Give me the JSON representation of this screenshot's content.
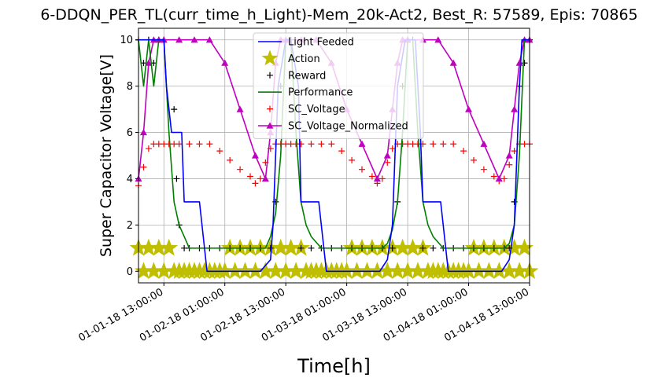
{
  "chart_data": {
    "type": "line",
    "title": "6-DDQN_PER_TL(curr_time_h_Light)-Mem_20k-Act2, Best_R: 57589, Epis: 70865",
    "xlabel": "Time[h]",
    "ylabel": "Super Capacitor Voltage[V]",
    "xlim": [
      "01-01-18 08:00:00",
      "01-04-18 13:00:00"
    ],
    "ylim": [
      -0.5,
      10.5
    ],
    "grid": true,
    "legend_position": "upper center",
    "x_ticks": [
      "01-01-18 13:00:00",
      "01-02-18 01:00:00",
      "01-02-18 13:00:00",
      "01-03-18 01:00:00",
      "01-03-18 13:00:00",
      "01-04-18 01:00:00",
      "01-04-18 13:00:00"
    ],
    "y_ticks": [
      0,
      2,
      4,
      6,
      8,
      10
    ],
    "series": [
      {
        "name": "Light Feeded",
        "color": "#0000ff",
        "marker": "none",
        "x": [
          "01-01-18 08:00",
          "01-01-18 13:00",
          "01-01-18 13:30",
          "01-01-18 14:30",
          "01-01-18 16:30",
          "01-01-18 17:00",
          "01-01-18 20:00",
          "01-01-18 21:30",
          "01-02-18 08:00",
          "01-02-18 10:00",
          "01-02-18 10:30",
          "01-02-18 11:30",
          "01-02-18 13:00",
          "01-02-18 14:00",
          "01-02-18 15:30",
          "01-02-18 16:00",
          "01-02-18 19:30",
          "01-02-18 21:00",
          "01-03-18 07:30",
          "01-03-18 09:00",
          "01-03-18 10:00",
          "01-03-18 11:00",
          "01-03-18 12:30",
          "01-03-18 14:30",
          "01-03-18 15:30",
          "01-03-18 16:00",
          "01-03-18 19:30",
          "01-03-18 21:00",
          "01-04-18 07:30",
          "01-04-18 09:00",
          "01-04-18 10:00",
          "01-04-18 11:00",
          "01-04-18 11:30",
          "01-04-18 13:00"
        ],
        "y": [
          10,
          10,
          8,
          6,
          6,
          3,
          3,
          0,
          0,
          0.5,
          2,
          8,
          10,
          10,
          8,
          3,
          3,
          0,
          0,
          0.5,
          2,
          8,
          10,
          10,
          6,
          3,
          3,
          0,
          0,
          0.5,
          2,
          8,
          10,
          10
        ]
      },
      {
        "name": "Action",
        "color": "#bfbf00",
        "marker": "star",
        "x": [
          "01-01-18 08:00",
          "01-01-18 09:00",
          "01-01-18 10:00",
          "01-01-18 11:00",
          "01-01-18 12:00",
          "01-01-18 13:00",
          "01-01-18 14:00",
          "01-01-18 15:00",
          "01-01-18 16:00",
          "01-01-18 17:00",
          "01-01-18 18:00",
          "01-01-18 19:00",
          "01-01-18 20:00",
          "01-01-18 21:00",
          "01-01-18 22:00",
          "01-01-18 23:00",
          "01-02-18 00:00",
          "01-02-18 01:00",
          "01-02-18 02:00",
          "01-02-18 03:00",
          "01-02-18 04:00",
          "01-02-18 05:00",
          "01-02-18 06:00",
          "01-02-18 07:00",
          "01-02-18 08:00",
          "01-02-18 09:00",
          "01-02-18 10:00",
          "01-02-18 11:00",
          "01-02-18 12:00",
          "01-02-18 13:00",
          "01-02-18 14:00",
          "01-02-18 15:00",
          "01-02-18 16:00",
          "01-02-18 17:00",
          "01-02-18 18:00",
          "01-02-18 19:00",
          "01-02-18 20:00",
          "01-02-18 21:00",
          "01-02-18 22:00",
          "01-02-18 23:00",
          "01-03-18 00:00",
          "01-03-18 01:00",
          "01-03-18 02:00",
          "01-03-18 03:00",
          "01-03-18 04:00",
          "01-03-18 05:00",
          "01-03-18 06:00",
          "01-03-18 07:00",
          "01-03-18 08:00",
          "01-03-18 09:00",
          "01-03-18 10:00",
          "01-03-18 11:00",
          "01-03-18 12:00",
          "01-03-18 13:00",
          "01-03-18 14:00",
          "01-03-18 15:00",
          "01-03-18 16:00",
          "01-03-18 17:00",
          "01-03-18 18:00",
          "01-03-18 19:00",
          "01-03-18 20:00",
          "01-03-18 21:00",
          "01-03-18 22:00",
          "01-03-18 23:00",
          "01-04-18 00:00",
          "01-04-18 01:00",
          "01-04-18 02:00",
          "01-04-18 03:00",
          "01-04-18 04:00",
          "01-04-18 05:00",
          "01-04-18 06:00",
          "01-04-18 07:00",
          "01-04-18 08:00",
          "01-04-18 09:00",
          "01-04-18 10:00",
          "01-04-18 11:00",
          "01-04-18 12:00",
          "01-04-18 13:00"
        ],
        "y": [
          1,
          0,
          1,
          0,
          1,
          0,
          1,
          0,
          0,
          0,
          0,
          0,
          0,
          0,
          0,
          0,
          0,
          0,
          1,
          0,
          1,
          0,
          1,
          0,
          1,
          0,
          1,
          0,
          1,
          0,
          1,
          0,
          1,
          0,
          0,
          0,
          0,
          0,
          0,
          0,
          0,
          0,
          1,
          0,
          1,
          0,
          1,
          0,
          1,
          0,
          1,
          0,
          1,
          0,
          1,
          0,
          1,
          0,
          0,
          0,
          0,
          0,
          0,
          0,
          0,
          0,
          1,
          0,
          1,
          0,
          1,
          0,
          1,
          0,
          1,
          0,
          1,
          0
        ]
      },
      {
        "name": "Reward",
        "color": "#000000",
        "marker": "plus",
        "x": [
          "01-01-18 08:00",
          "01-01-18 09:00",
          "01-01-18 10:00",
          "01-01-18 11:00",
          "01-01-18 12:00",
          "01-01-18 13:00",
          "01-01-18 15:00",
          "01-01-18 15:30",
          "01-01-18 16:00",
          "01-01-18 17:00",
          "01-01-18 18:00",
          "01-01-18 20:00",
          "01-01-18 22:00",
          "01-02-18 00:00",
          "01-02-18 02:00",
          "01-02-18 04:00",
          "01-02-18 06:00",
          "01-02-18 08:00",
          "01-02-18 10:00",
          "01-02-18 11:00",
          "01-02-18 12:00",
          "01-02-18 13:00",
          "01-02-18 14:00",
          "01-02-18 16:00",
          "01-02-18 18:00",
          "01-02-18 20:00",
          "01-02-18 22:00",
          "01-03-18 00:00",
          "01-03-18 02:00",
          "01-03-18 04:00",
          "01-03-18 06:00",
          "01-03-18 08:00",
          "01-03-18 10:00",
          "01-03-18 11:00",
          "01-03-18 12:00",
          "01-03-18 13:00",
          "01-03-18 14:00",
          "01-03-18 16:00",
          "01-03-18 18:00",
          "01-03-18 20:00",
          "01-03-18 22:00",
          "01-04-18 00:00",
          "01-04-18 02:00",
          "01-04-18 04:00",
          "01-04-18 06:00",
          "01-04-18 08:00",
          "01-04-18 09:00",
          "01-04-18 10:00",
          "01-04-18 11:00",
          "01-04-18 12:00",
          "01-04-18 13:00"
        ],
        "y": [
          10,
          9,
          10,
          9,
          10,
          10,
          7,
          4,
          2,
          1,
          1,
          1,
          1,
          1,
          1,
          1,
          1,
          1,
          1,
          3,
          8,
          10,
          10,
          1,
          1,
          1,
          1,
          1,
          1,
          1,
          1,
          1,
          1,
          3,
          8,
          10,
          10,
          1,
          1,
          1,
          1,
          1,
          1,
          1,
          1,
          1,
          1,
          3,
          8,
          9,
          10
        ]
      },
      {
        "name": "Performance",
        "color": "#008000",
        "marker": "none",
        "x": [
          "01-01-18 08:00",
          "01-01-18 09:00",
          "01-01-18 10:00",
          "01-01-18 11:00",
          "01-01-18 12:00",
          "01-01-18 13:00",
          "01-01-18 14:00",
          "01-01-18 15:00",
          "01-01-18 16:00",
          "01-01-18 17:00",
          "01-01-18 18:00",
          "01-01-18 20:00",
          "01-02-18 00:00",
          "01-02-18 06:00",
          "01-02-18 08:00",
          "01-02-18 09:00",
          "01-02-18 10:00",
          "01-02-18 11:00",
          "01-02-18 12:00",
          "01-02-18 13:00",
          "01-02-18 14:00",
          "01-02-18 15:00",
          "01-02-18 16:00",
          "01-02-18 17:00",
          "01-02-18 18:00",
          "01-02-18 20:00",
          "01-03-18 00:00",
          "01-03-18 06:00",
          "01-03-18 08:00",
          "01-03-18 09:00",
          "01-03-18 10:00",
          "01-03-18 11:00",
          "01-03-18 12:00",
          "01-03-18 13:00",
          "01-03-18 14:00",
          "01-03-18 15:00",
          "01-03-18 16:00",
          "01-03-18 17:00",
          "01-03-18 18:00",
          "01-03-18 20:00",
          "01-04-18 00:00",
          "01-04-18 06:00",
          "01-04-18 08:00",
          "01-04-18 09:00",
          "01-04-18 10:00",
          "01-04-18 11:00",
          "01-04-18 12:00",
          "01-04-18 13:00"
        ],
        "y": [
          10,
          8,
          10,
          8,
          10,
          10,
          6,
          3,
          2,
          1.5,
          1,
          1,
          1,
          1,
          1,
          1,
          1.5,
          2.5,
          5,
          10,
          10,
          6,
          3,
          2,
          1.5,
          1,
          1,
          1,
          1,
          1.2,
          1.8,
          3,
          6,
          10,
          10,
          6,
          3,
          2,
          1.5,
          1,
          1,
          1,
          1,
          1.2,
          2,
          5,
          10,
          10
        ]
      },
      {
        "name": "SC_Voltage",
        "color": "#ff0000",
        "marker": "plus",
        "x": [
          "01-01-18 08:00",
          "01-01-18 09:00",
          "01-01-18 10:00",
          "01-01-18 11:00",
          "01-01-18 12:00",
          "01-01-18 13:00",
          "01-01-18 14:00",
          "01-01-18 15:00",
          "01-01-18 16:00",
          "01-01-18 18:00",
          "01-01-18 20:00",
          "01-01-18 22:00",
          "01-02-18 00:00",
          "01-02-18 02:00",
          "01-02-18 04:00",
          "01-02-18 06:00",
          "01-02-18 07:00",
          "01-02-18 08:00",
          "01-02-18 09:00",
          "01-02-18 10:00",
          "01-02-18 11:00",
          "01-02-18 12:00",
          "01-02-18 13:00",
          "01-02-18 14:00",
          "01-02-18 15:00",
          "01-02-18 16:00",
          "01-02-18 18:00",
          "01-02-18 20:00",
          "01-02-18 22:00",
          "01-03-18 00:00",
          "01-03-18 02:00",
          "01-03-18 04:00",
          "01-03-18 06:00",
          "01-03-18 07:00",
          "01-03-18 08:00",
          "01-03-18 09:00",
          "01-03-18 10:00",
          "01-03-18 11:00",
          "01-03-18 12:00",
          "01-03-18 13:00",
          "01-03-18 14:00",
          "01-03-18 15:00",
          "01-03-18 16:00",
          "01-03-18 18:00",
          "01-03-18 20:00",
          "01-03-18 22:00",
          "01-04-18 00:00",
          "01-04-18 02:00",
          "01-04-18 04:00",
          "01-04-18 06:00",
          "01-04-18 07:00",
          "01-04-18 08:00",
          "01-04-18 09:00",
          "01-04-18 10:00",
          "01-04-18 11:00",
          "01-04-18 12:00",
          "01-04-18 13:00"
        ],
        "y": [
          3.7,
          4.5,
          5.3,
          5.5,
          5.5,
          5.5,
          5.5,
          5.5,
          5.5,
          5.5,
          5.5,
          5.5,
          5.2,
          4.8,
          4.4,
          4.1,
          3.8,
          4.0,
          4.7,
          5.3,
          5.5,
          5.5,
          5.5,
          5.5,
          5.5,
          5.5,
          5.5,
          5.5,
          5.5,
          5.2,
          4.8,
          4.4,
          4.1,
          3.8,
          4.0,
          4.7,
          5.3,
          5.5,
          5.5,
          5.5,
          5.5,
          5.5,
          5.5,
          5.5,
          5.5,
          5.5,
          5.2,
          4.8,
          4.4,
          4.1,
          3.9,
          4.0,
          4.6,
          5.2,
          5.5,
          5.5,
          5.5
        ]
      },
      {
        "name": "SC_Voltage_Normalized",
        "color": "#bf00bf",
        "marker": "triangle",
        "x": [
          "01-01-18 08:00",
          "01-01-18 09:00",
          "01-01-18 10:00",
          "01-01-18 11:00",
          "01-01-18 12:00",
          "01-01-18 13:00",
          "01-01-18 16:00",
          "01-01-18 19:00",
          "01-01-18 22:00",
          "01-02-18 01:00",
          "01-02-18 04:00",
          "01-02-18 07:00",
          "01-02-18 09:00",
          "01-02-18 10:00",
          "01-02-18 11:00",
          "01-02-18 12:00",
          "01-02-18 13:00",
          "01-02-18 16:00",
          "01-02-18 19:00",
          "01-02-18 22:00",
          "01-03-18 01:00",
          "01-03-18 04:00",
          "01-03-18 07:00",
          "01-03-18 09:00",
          "01-03-18 10:00",
          "01-03-18 11:00",
          "01-03-18 12:00",
          "01-03-18 13:00",
          "01-03-18 16:00",
          "01-03-18 19:00",
          "01-03-18 22:00",
          "01-04-18 01:00",
          "01-04-18 04:00",
          "01-04-18 07:00",
          "01-04-18 09:00",
          "01-04-18 10:00",
          "01-04-18 11:00",
          "01-04-18 12:00",
          "01-04-18 13:00"
        ],
        "y": [
          4,
          6,
          9,
          10,
          10,
          10,
          10,
          10,
          10,
          9,
          7,
          5,
          4,
          6,
          9,
          10,
          10,
          10,
          10,
          9,
          7,
          5.5,
          4,
          5,
          7,
          9,
          10,
          10,
          10,
          10,
          9,
          7,
          5.5,
          4,
          5,
          7,
          9,
          10,
          10
        ]
      }
    ]
  }
}
